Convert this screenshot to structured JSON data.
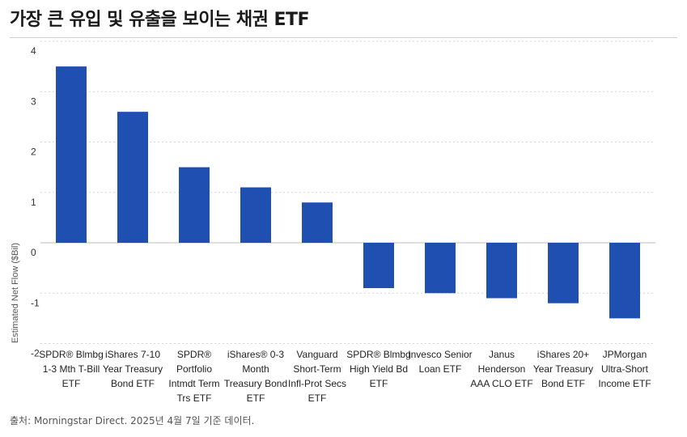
{
  "chart_data": {
    "type": "bar",
    "title": "가장 큰 유입 및 유출을 보이는 채권 ETF",
    "ylabel": "Estimated Net Flow ($Bil)",
    "xlabel": "",
    "ylim": [
      -2,
      4
    ],
    "yticks": [
      4,
      3,
      2,
      1,
      0,
      -1,
      -2
    ],
    "grid": true,
    "bar_color": "#1f4fb0",
    "categories": [
      "SPDR® Blmbg 1-3 Mth T-Bill ETF",
      "iShares 7-10 Year Treasury Bond ETF",
      "SPDR® Portfolio Intmdt Term Trs ETF",
      "iShares® 0-3 Month Treasury Bond ETF",
      "Vanguard Short-Term Infl-Prot Secs ETF",
      "SPDR® Blmbg High Yield Bd ETF",
      "Invesco Senior Loan ETF",
      "Janus Henderson AAA CLO ETF",
      "iShares 20+ Year Treasury Bond ETF",
      "JPMorgan Ultra-Short Income ETF"
    ],
    "category_lines": [
      [
        "SPDR® Blmbg",
        "1-3 Mth T-Bill",
        "ETF"
      ],
      [
        "iShares 7-10",
        "Year Treasury",
        "Bond ETF"
      ],
      [
        "SPDR®",
        "Portfolio",
        "Intmdt Term",
        "Trs ETF"
      ],
      [
        "iShares® 0-3",
        "Month",
        "Treasury Bond",
        "ETF"
      ],
      [
        "Vanguard",
        "Short-Term",
        "Infl-Prot Secs",
        "ETF"
      ],
      [
        "SPDR® Blmbg",
        "High Yield Bd",
        "ETF"
      ],
      [
        "Invesco Senior",
        "Loan ETF"
      ],
      [
        "Janus",
        "Henderson",
        "AAA CLO ETF"
      ],
      [
        "iShares 20+",
        "Year Treasury",
        "Bond ETF"
      ],
      [
        "JPMorgan",
        "Ultra-Short",
        "Income ETF"
      ]
    ],
    "values": [
      3.5,
      2.6,
      1.5,
      1.1,
      0.8,
      -0.9,
      -1.0,
      -1.1,
      -1.2,
      -1.5
    ]
  },
  "source_note": "출처: Morningstar Direct. 2025년 4월 7일 기준 데이터."
}
